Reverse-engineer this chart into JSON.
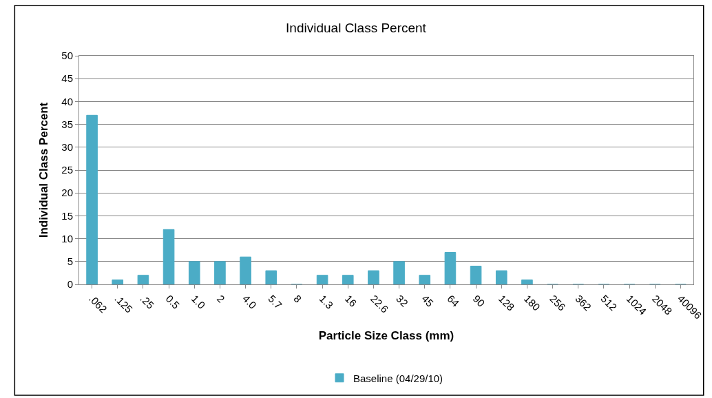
{
  "chart_data": {
    "type": "bar",
    "title": "Individual Class Percent",
    "xlabel": "Particle Size Class (mm)",
    "ylabel": "Individual Class Percent",
    "categories": [
      ".062",
      ".125",
      ".25",
      "0.5",
      "1.0",
      "2",
      "4.0",
      "5.7",
      "8",
      "1.3",
      "16",
      "22.6",
      "32",
      "45",
      "64",
      "90",
      "128",
      "180",
      "256",
      "362",
      "512",
      "1024",
      "2048",
      "40096"
    ],
    "series": [
      {
        "name": "Baseline (04/29/10)",
        "color": "#4bacc6",
        "values": [
          37,
          1,
          2,
          12,
          5,
          5,
          6,
          3,
          0,
          2,
          2,
          3,
          5,
          2,
          7,
          4,
          3,
          1,
          0,
          0,
          0,
          0,
          0,
          0
        ]
      }
    ],
    "ylim": [
      0,
      50
    ],
    "yticks": [
      0,
      5,
      10,
      15,
      20,
      25,
      30,
      35,
      40,
      45,
      50
    ],
    "grid": "y",
    "legend": "bottom"
  }
}
